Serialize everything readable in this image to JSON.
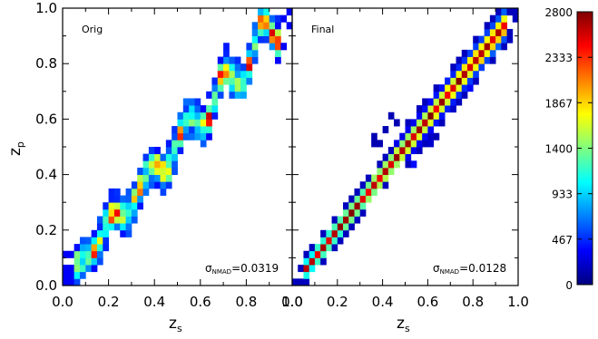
{
  "chart_data": [
    {
      "type": "heatmap",
      "panel_label": "Orig",
      "xlabel": "z",
      "xlabel_sub": "s",
      "ylabel": "z",
      "ylabel_sub": "p",
      "xlim": [
        0.0,
        1.0
      ],
      "ylim": [
        0.0,
        1.0
      ],
      "xticks": [
        "0.0",
        "0.2",
        "0.4",
        "0.6",
        "0.8",
        "1.0"
      ],
      "yticks": [
        "0.0",
        "0.2",
        "0.4",
        "0.6",
        "0.8",
        "1.0"
      ],
      "stat_symbol": "σ",
      "stat_sub": "NMAD",
      "stat_value": "=0.0319",
      "stat_number": 0.0319
    },
    {
      "type": "heatmap",
      "panel_label": "Final",
      "xlabel": "z",
      "xlabel_sub": "s",
      "xlim": [
        0.0,
        1.0
      ],
      "ylim": [
        0.0,
        1.0
      ],
      "xticks": [
        "0.0",
        "0.2",
        "0.4",
        "0.6",
        "0.8",
        "1.0"
      ],
      "stat_symbol": "σ",
      "stat_sub": "NMAD",
      "stat_value": "=0.0128",
      "stat_number": 0.0128
    }
  ],
  "colorbar": {
    "min": 0,
    "max": 2800,
    "tick_labels": [
      "0",
      "467",
      "933",
      "1400",
      "1867",
      "2333",
      "2800"
    ],
    "tick_values": [
      0,
      467,
      933,
      1400,
      1867,
      2333,
      2800
    ],
    "colormap": "jet"
  }
}
